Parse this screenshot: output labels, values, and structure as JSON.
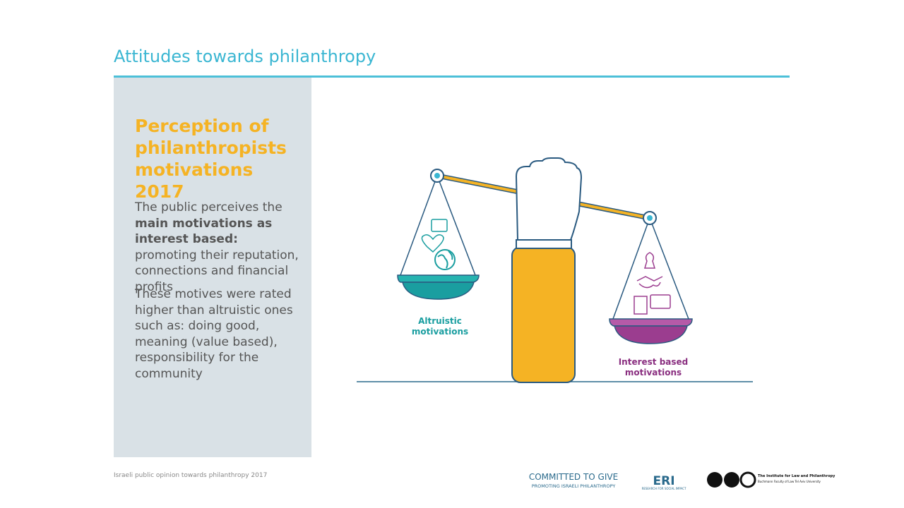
{
  "header": {
    "title": "Attitudes towards philanthropy"
  },
  "panel": {
    "heading": "Perception of philanthropists motivations 2017",
    "paragraph1": {
      "before": "The public perceives the",
      "bold": "main motivations as interest based:",
      "after": "promoting their reputation, connections and financial profits"
    },
    "paragraph2": "These motives were rated higher than altruistic ones such as: doing good, meaning (value based), responsibility for the community"
  },
  "illustration": {
    "left_label": "Altruistic motivations",
    "right_label": "Interest based motivations"
  },
  "footer": {
    "source": "Israeli public opinion towards philanthropy 2017",
    "logo1_title": "COMMITTED TO GIVE",
    "logo1_subtitle": "PROMOTING ISRAELI PHILANTHROPY",
    "logo2_title": "ERI",
    "logo2_subtitle": "RESEARCH FOR SOCIAL IMPACT",
    "logo3_title": "The Institute for Law and Philanthropy",
    "logo3_subtitle": "Buchmann Faculty of Law Tel Aviv University"
  }
}
